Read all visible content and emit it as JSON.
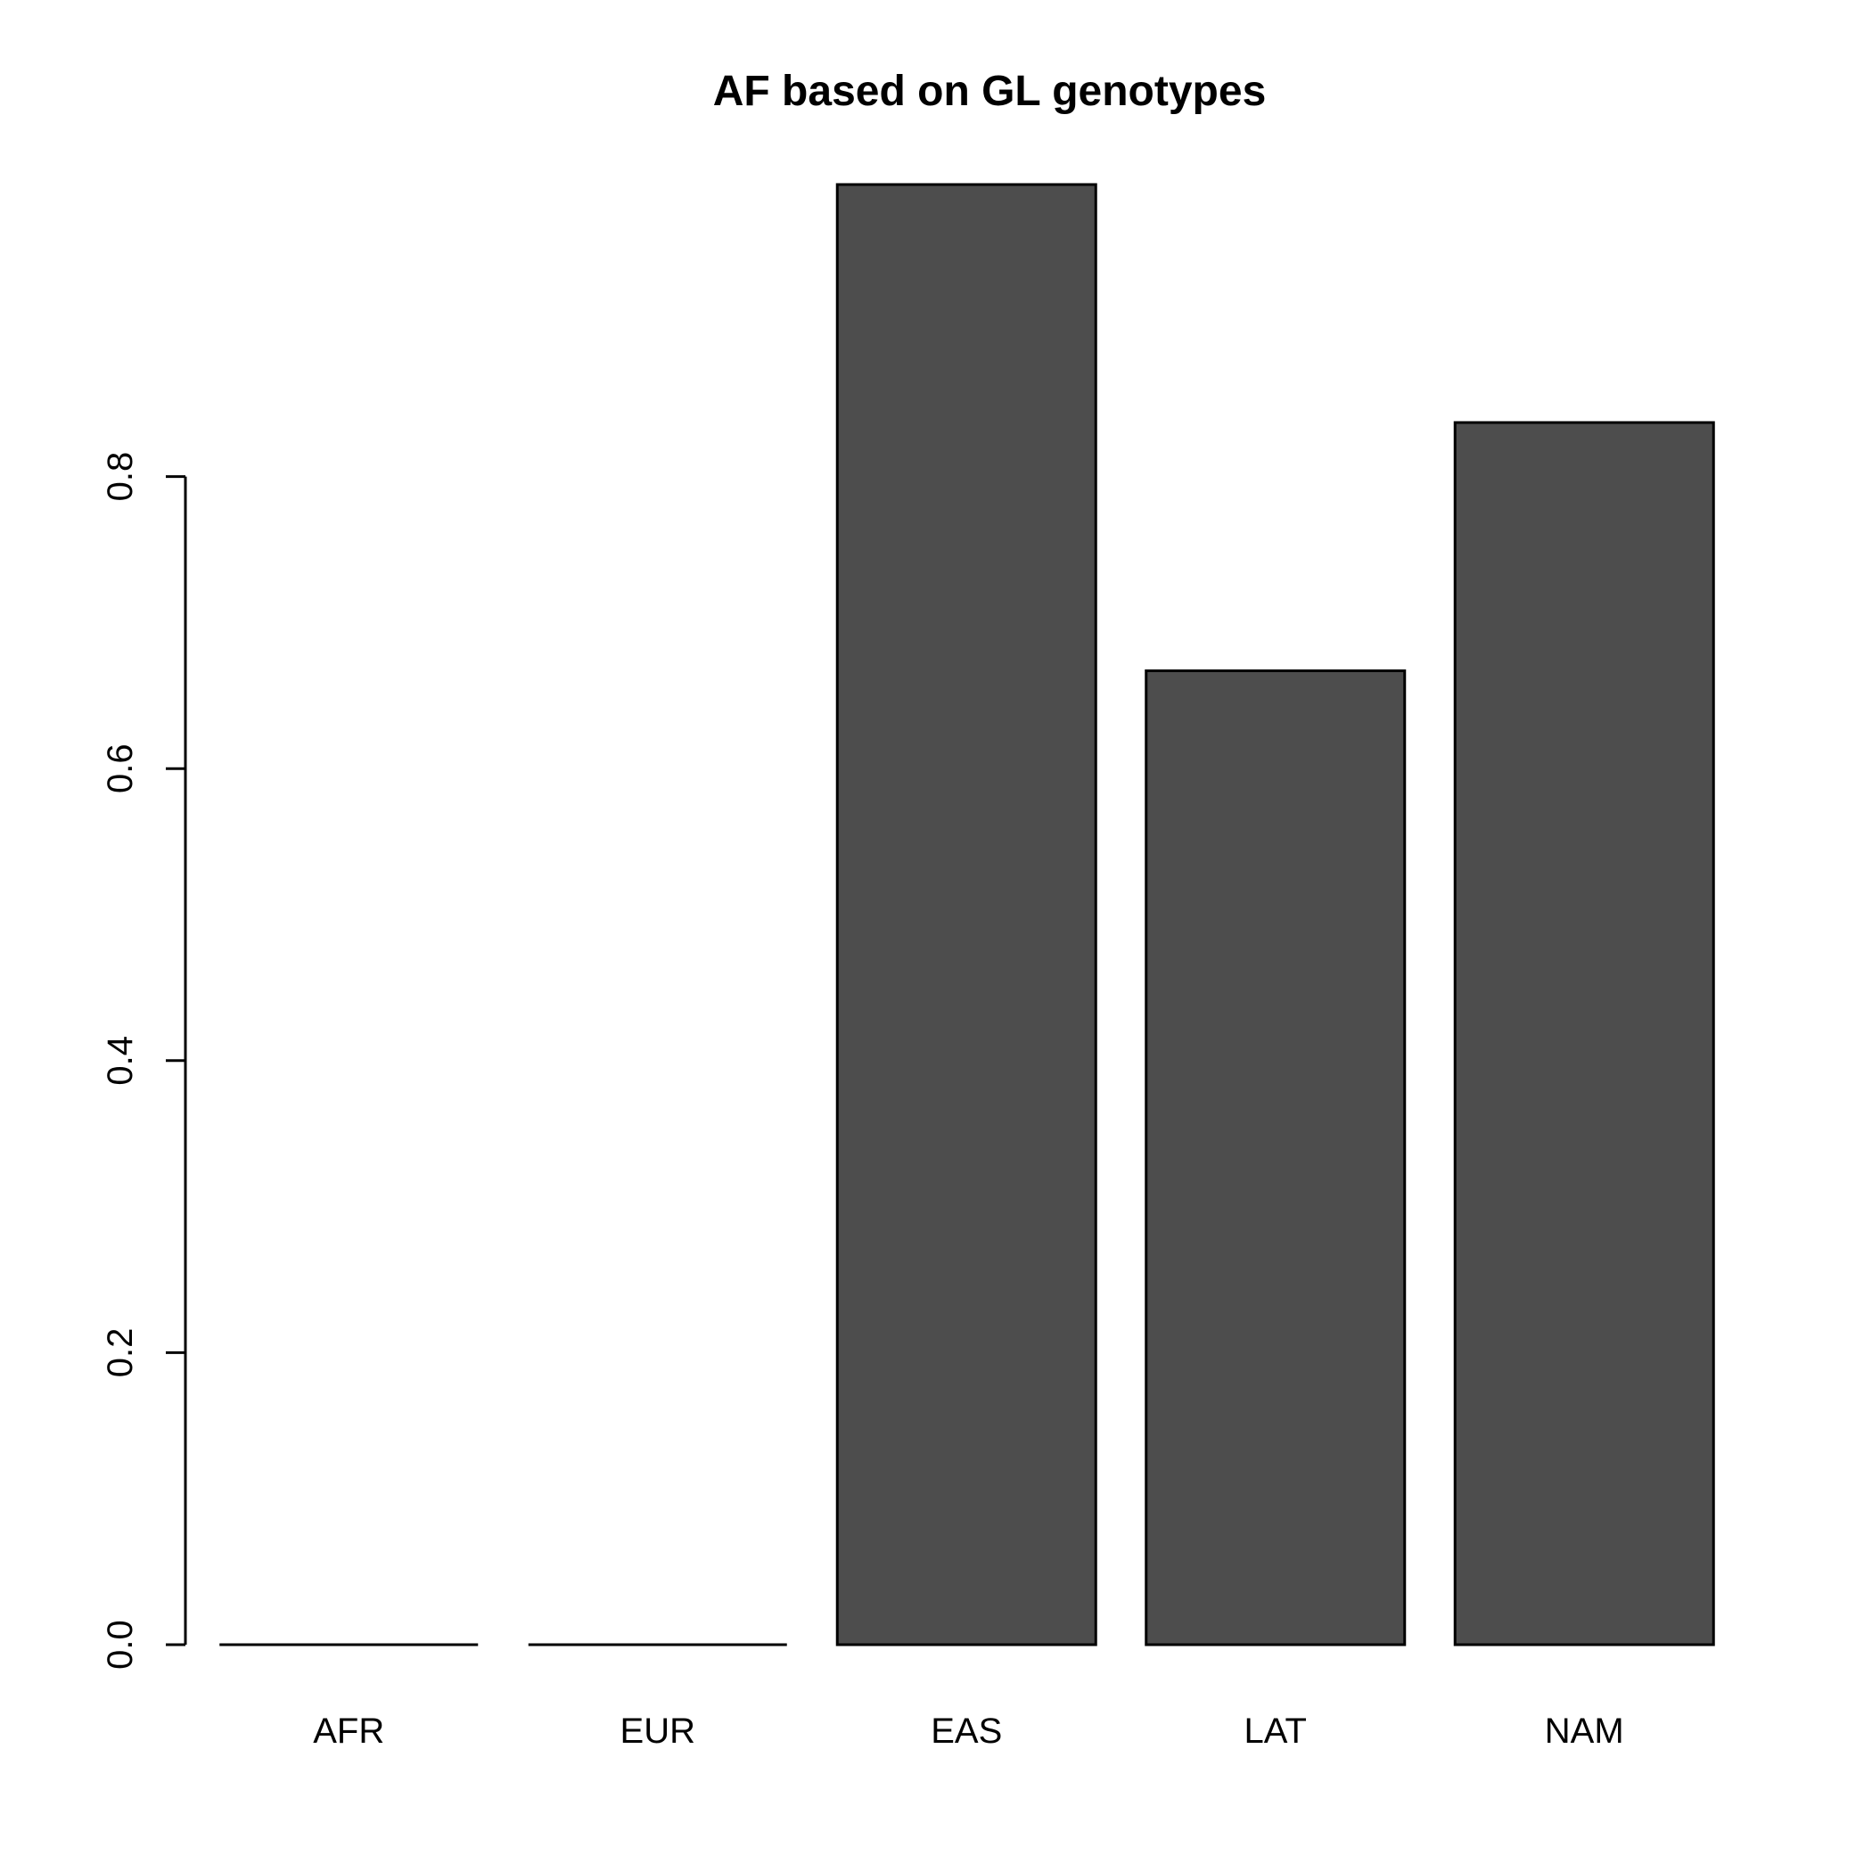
{
  "chart_data": {
    "type": "bar",
    "title": "AF based on GL genotypes",
    "xlabel": "",
    "ylabel": "",
    "categories": [
      "AFR",
      "EUR",
      "EAS",
      "LAT",
      "NAM"
    ],
    "values": [
      0.0,
      0.0,
      1.0,
      0.667,
      0.837
    ],
    "yticks": [
      0.0,
      0.2,
      0.4,
      0.6,
      0.8
    ],
    "ytick_labels": [
      "0.0",
      "0.2",
      "0.4",
      "0.6",
      "0.8"
    ],
    "ylim": [
      0,
      1.0
    ],
    "grid": false,
    "legend": "none",
    "bar_color": "#4d4d4d",
    "outline_color": "#000000"
  }
}
